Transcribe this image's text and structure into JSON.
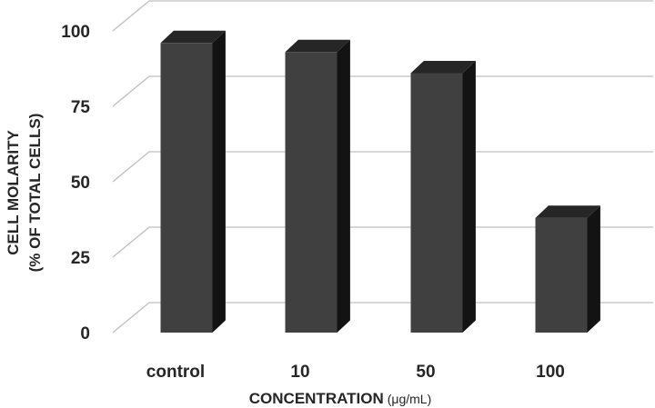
{
  "chart_data": {
    "type": "bar",
    "categories": [
      "control",
      "10",
      "50",
      "100"
    ],
    "values": [
      96,
      93,
      86,
      38
    ],
    "ylim": [
      0,
      100
    ],
    "yticks": [
      "0",
      "25",
      "50",
      "75",
      "100"
    ],
    "xlabel": "CONCENTRATION",
    "xlabel_unit": "(μg/mL)",
    "ylabel_line1": "CELL MOLARITY",
    "ylabel_line2": "(% OF TOTAL CELLS)",
    "grid": true,
    "style": "3d-bar",
    "colors": {
      "bar_front": "#404040",
      "bar_top": "#262626",
      "bar_side": "#131313",
      "grid": "#bfbfbf",
      "text": "#262626"
    }
  }
}
